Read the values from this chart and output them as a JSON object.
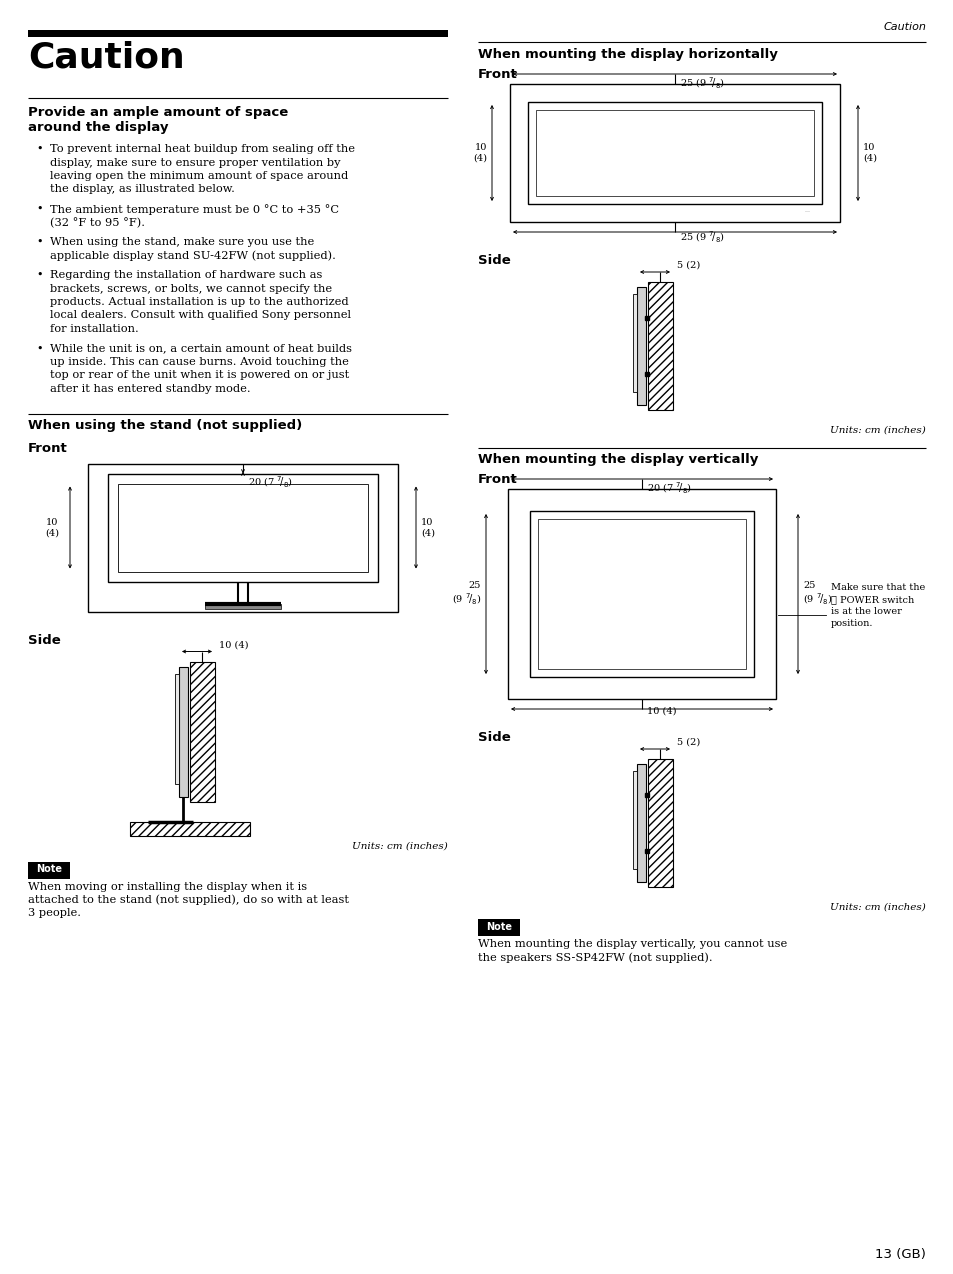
{
  "bg_color": "#ffffff",
  "caution_title": "Caution",
  "section1_title_line1": "Provide an ample amount of space",
  "section1_title_line2": "around the display",
  "bullets": [
    [
      "To prevent internal heat buildup from sealing off the",
      "display, make sure to ensure proper ventilation by",
      "leaving open the minimum amount of space around",
      "the display, as illustrated below."
    ],
    [
      "The ambient temperature must be 0 °C to +35 °C",
      "(32 °F to 95 °F)."
    ],
    [
      "When using the stand, make sure you use the",
      "applicable display stand SU-42FW (not supplied)."
    ],
    [
      "Regarding the installation of hardware such as",
      "brackets, screws, or bolts, we cannot specify the",
      "products. Actual installation is up to the authorized",
      "local dealers. Consult with qualified Sony personnel",
      "for installation."
    ],
    [
      "While the unit is on, a certain amount of heat builds",
      "up inside. This can cause burns. Avoid touching the",
      "top or rear of the unit when it is powered on or just",
      "after it has entered standby mode."
    ]
  ],
  "section2_title": "When using the stand (not supplied)",
  "section3_title": "When mounting the display horizontally",
  "section4_title": "When mounting the display vertically",
  "units_text": "Units: cm (inches)",
  "note_text": "Note",
  "note1_body_lines": [
    "When moving or installing the display when it is",
    "attached to the stand (not supplied), do so with at least",
    "3 people."
  ],
  "note2_body_lines": [
    "When mounting the display vertically, you cannot use",
    "the speakers SS-SP42FW (not supplied)."
  ],
  "page_number": "13 (GB)",
  "caution_header": "Caution",
  "power_note": [
    "Make sure that the",
    "⏻ POWER switch",
    "is at the lower",
    "position."
  ]
}
